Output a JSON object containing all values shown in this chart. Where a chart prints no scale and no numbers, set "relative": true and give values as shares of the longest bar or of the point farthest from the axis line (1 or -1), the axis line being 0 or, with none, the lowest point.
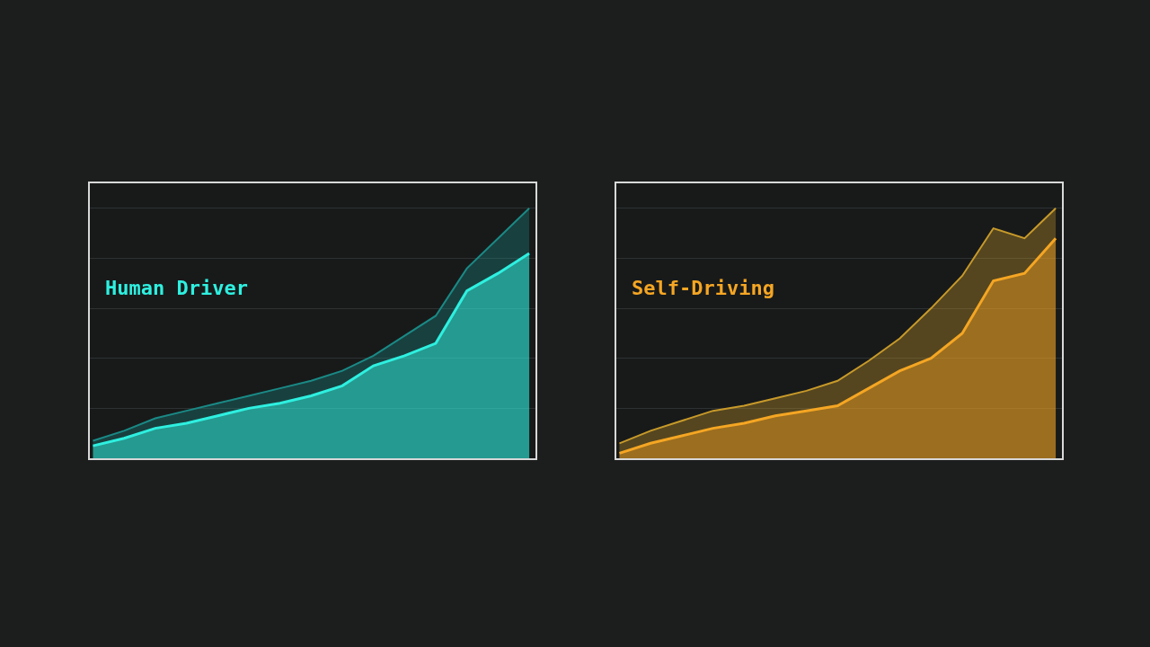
{
  "chart_data": [
    {
      "type": "area",
      "title": "Human Driver",
      "relative": true,
      "grid": "y",
      "categories": [
        null,
        null,
        null,
        null,
        null,
        null,
        null,
        null,
        null,
        null,
        null,
        null,
        null,
        null,
        null
      ],
      "series": [
        {
          "color": "#2ef0e0",
          "values": [
            0.05,
            0.08,
            0.12,
            0.14,
            0.17,
            0.2,
            0.22,
            0.25,
            0.29,
            0.37,
            0.41,
            0.46,
            0.67,
            0.74,
            0.82
          ]
        },
        {
          "color": "#1a8a86",
          "values": [
            0.07,
            0.11,
            0.16,
            0.19,
            0.22,
            0.25,
            0.28,
            0.31,
            0.35,
            0.41,
            0.49,
            0.57,
            0.76,
            0.88,
            1
          ]
        }
      ]
    },
    {
      "type": "area",
      "title": "Self-Driving",
      "relative": true,
      "grid": "y",
      "categories": [
        null,
        null,
        null,
        null,
        null,
        null,
        null,
        null,
        null,
        null,
        null,
        null,
        null,
        null,
        null
      ],
      "series": [
        {
          "color": "#f5a623",
          "values": [
            0.02,
            0.06,
            0.09,
            0.12,
            0.14,
            0.17,
            0.19,
            0.21,
            0.28,
            0.35,
            0.4,
            0.5,
            0.71,
            0.74,
            0.88
          ]
        },
        {
          "color": "#c89a2a",
          "values": [
            0.06,
            0.11,
            0.15,
            0.19,
            0.21,
            0.24,
            0.27,
            0.31,
            0.39,
            0.48,
            0.6,
            0.73,
            0.92,
            0.88,
            1
          ]
        }
      ]
    }
  ]
}
